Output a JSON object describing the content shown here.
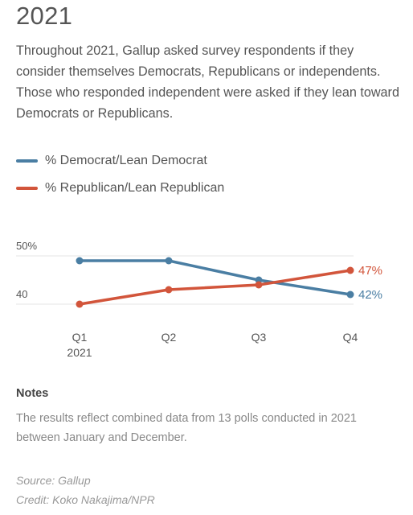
{
  "title": "2021",
  "description": "Throughout 2021, Gallup asked survey respondents if they consider themselves Democrats, Republicans or independents. Those who responded independent were asked if they lean toward Democrats or Republicans.",
  "legend": [
    {
      "label": "% Democrat/Lean Democrat",
      "color": "#4a7ea3"
    },
    {
      "label": "% Republican/Lean Republican",
      "color": "#d2553b"
    }
  ],
  "chart_data": {
    "type": "line",
    "categories": [
      "Q1",
      "Q2",
      "Q3",
      "Q4"
    ],
    "category_sublabels": [
      "2021",
      "",
      "",
      ""
    ],
    "series": [
      {
        "name": "% Democrat/Lean Democrat",
        "values": [
          49,
          49,
          45,
          42
        ],
        "color": "#4a7ea3",
        "end_label": "42%"
      },
      {
        "name": "% Republican/Lean Republican",
        "values": [
          40,
          43,
          44,
          47
        ],
        "color": "#d2553b",
        "end_label": "47%"
      }
    ],
    "y_ticks": [
      {
        "value": 50,
        "label": "50%"
      },
      {
        "value": 40,
        "label": "40"
      }
    ],
    "ylim": [
      37,
      52
    ]
  },
  "notes_heading": "Notes",
  "notes_text": "The results reflect combined data from 13 polls conducted in 2021 between January and December.",
  "source": "Source: Gallup",
  "credit": "Credit: Koko Nakajima/NPR"
}
